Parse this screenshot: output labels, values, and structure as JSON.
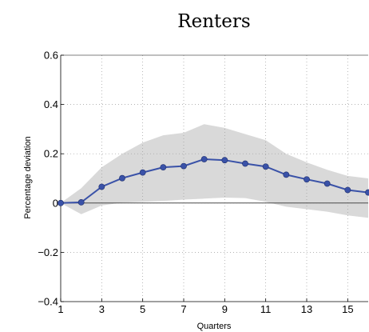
{
  "chart_data": {
    "type": "line",
    "title": "Renters",
    "xlabel": "Quarters",
    "ylabel": "Percentage deviation",
    "xlim": [
      1,
      16
    ],
    "ylim": [
      -0.4,
      0.6
    ],
    "xticks": [
      1,
      3,
      5,
      7,
      9,
      11,
      13,
      15
    ],
    "xtick_labels": [
      "1",
      "3",
      "5",
      "7",
      "9",
      "11",
      "13",
      "15"
    ],
    "yticks": [
      -0.4,
      -0.2,
      0,
      0.2,
      0.4,
      0.6
    ],
    "ytick_labels": [
      "−0.4",
      "−0.2",
      "0",
      "0.2",
      "0.4",
      "0.6"
    ],
    "grid": true,
    "zero_line": true,
    "x": [
      1,
      2,
      3,
      4,
      5,
      6,
      7,
      8,
      9,
      10,
      11,
      12,
      13,
      14,
      15,
      16
    ],
    "series": [
      {
        "values": [
          0.0,
          0.003,
          0.066,
          0.101,
          0.124,
          0.145,
          0.15,
          0.178,
          0.174,
          0.16,
          0.148,
          0.115,
          0.096,
          0.079,
          0.053,
          0.043
        ]
      }
    ],
    "band": {
      "upper": [
        0.0,
        0.06,
        0.145,
        0.2,
        0.245,
        0.275,
        0.285,
        0.32,
        0.305,
        0.28,
        0.255,
        0.2,
        0.165,
        0.135,
        0.11,
        0.1
      ],
      "lower": [
        0.0,
        -0.045,
        -0.01,
        0.002,
        0.005,
        0.008,
        0.014,
        0.018,
        0.022,
        0.02,
        0.005,
        -0.015,
        -0.025,
        -0.035,
        -0.05,
        -0.06
      ]
    },
    "colors": {
      "line": "#3a52a8",
      "band": "#d9d9d9",
      "zero_line": "#4a4a4a"
    }
  }
}
